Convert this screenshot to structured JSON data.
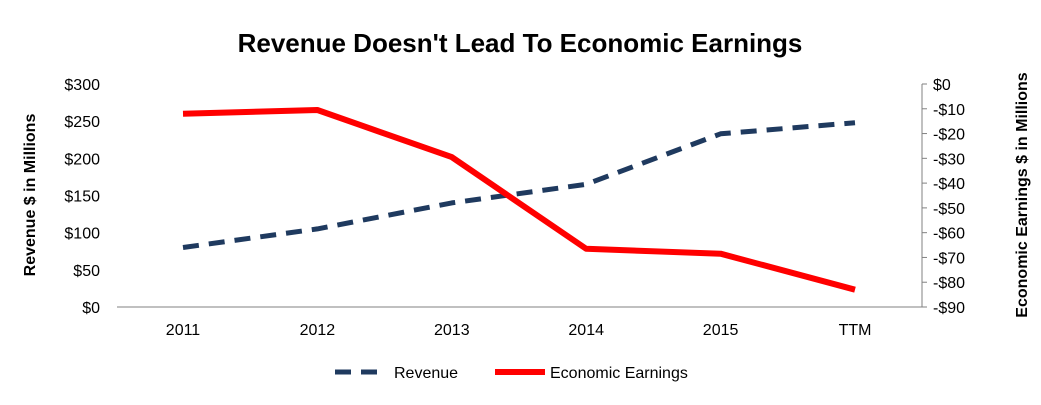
{
  "chart_data": {
    "type": "line",
    "title": "Revenue Doesn't Lead To Economic Earnings",
    "categories": [
      "2011",
      "2012",
      "2013",
      "2014",
      "2015",
      "TTM"
    ],
    "y_left": {
      "label": "Revenue $ in Millions",
      "ticks": [
        "$0",
        "$50",
        "$100",
        "$150",
        "$200",
        "$250",
        "$300"
      ],
      "ylim": [
        0,
        300
      ]
    },
    "y_right": {
      "label": "Economic Earnings $ in Millions",
      "ticks": [
        "$0",
        "-$10",
        "-$20",
        "-$30",
        "-$40",
        "-$50",
        "-$60",
        "-$70",
        "-$80",
        "-$90"
      ],
      "ylim": [
        -90,
        0
      ]
    },
    "series": [
      {
        "name": "Revenue",
        "axis": "left",
        "style": "dashed",
        "color": "#1F3A5F",
        "values": [
          80,
          105,
          140,
          165,
          233,
          248
        ]
      },
      {
        "name": "Economic Earnings",
        "axis": "right",
        "style": "solid",
        "color": "#FF0000",
        "values": [
          -12,
          -10.5,
          -29.5,
          -66.5,
          -68.5,
          -83
        ]
      }
    ],
    "legend": {
      "position": "bottom"
    },
    "grid": false
  }
}
